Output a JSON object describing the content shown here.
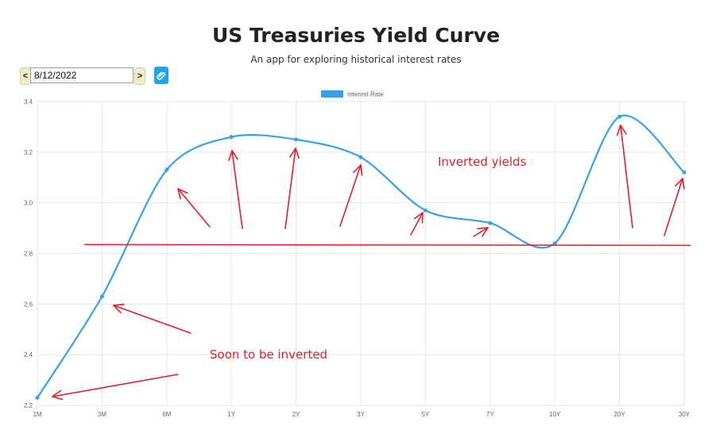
{
  "header": {
    "title": "US Treasuries Yield Curve",
    "subtitle": "An app for exploring historical interest rates"
  },
  "controls": {
    "prev_label": "<",
    "next_label": ">",
    "date_value": "8/12/2022",
    "prev_icon": "chevron-left-icon",
    "next_icon": "chevron-right-icon",
    "link_icon": "paperclip-icon"
  },
  "chart_data": {
    "type": "line",
    "categories": [
      "1M",
      "3M",
      "6M",
      "1Y",
      "2Y",
      "3Y",
      "5Y",
      "7Y",
      "10Y",
      "20Y",
      "30Y"
    ],
    "series": [
      {
        "name": "Interest Rate",
        "values": [
          2.23,
          2.63,
          3.13,
          3.26,
          3.25,
          3.18,
          2.97,
          2.92,
          2.84,
          3.34,
          3.12
        ],
        "color": "#36a2eb"
      }
    ],
    "ylim": [
      2.2,
      3.4
    ],
    "yticks": [
      "3.4",
      "3.2",
      "3.0",
      "2.8",
      "2.6",
      "2.4",
      "2.2"
    ],
    "grid": true,
    "legend": "top-center",
    "annotations": {
      "inverted_label": "Inverted yields",
      "soon_label": "Soon to be inverted",
      "reference_level": 2.835,
      "color": "#e01f2b"
    }
  }
}
